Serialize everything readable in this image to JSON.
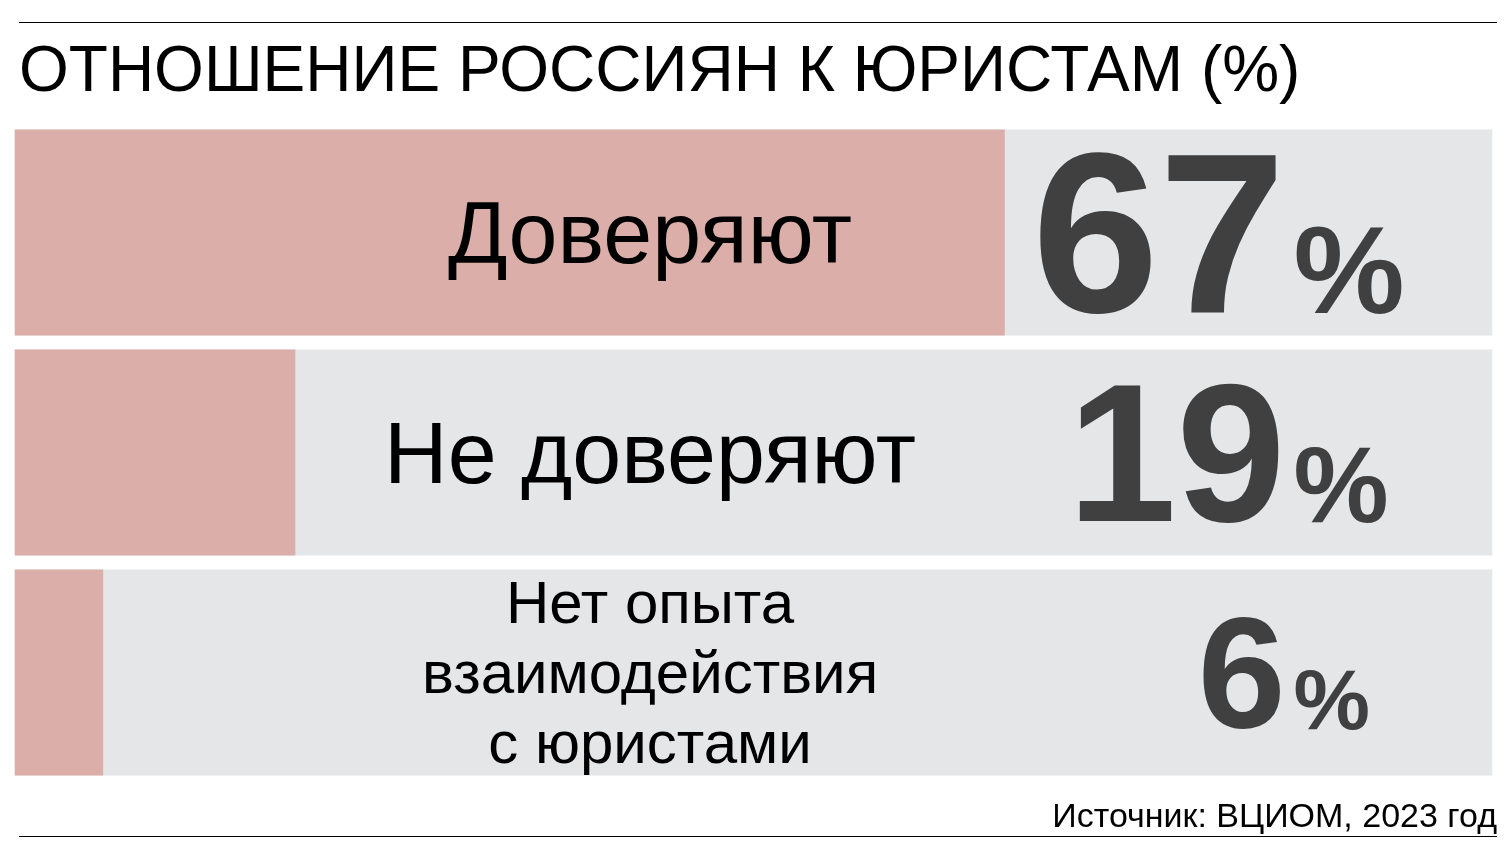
{
  "chart_data": {
    "type": "bar",
    "orientation": "horizontal",
    "title": "ОТНОШЕНИЕ РОССИЯН К ЮРИСТАМ (%)",
    "categories": [
      "Доверяют",
      "Не доверяют",
      "Нет опыта\nвзаимодействия\nс юристами"
    ],
    "values": [
      67,
      19,
      6
    ],
    "color": "#dbaeaa",
    "value_labels": [
      "67%",
      "19%",
      "6%"
    ],
    "xlim": [
      0,
      100
    ],
    "tick_labels": false,
    "grid": false,
    "annotations": [
      "Источник: ВЦИОМ, 2023 год"
    ]
  }
}
